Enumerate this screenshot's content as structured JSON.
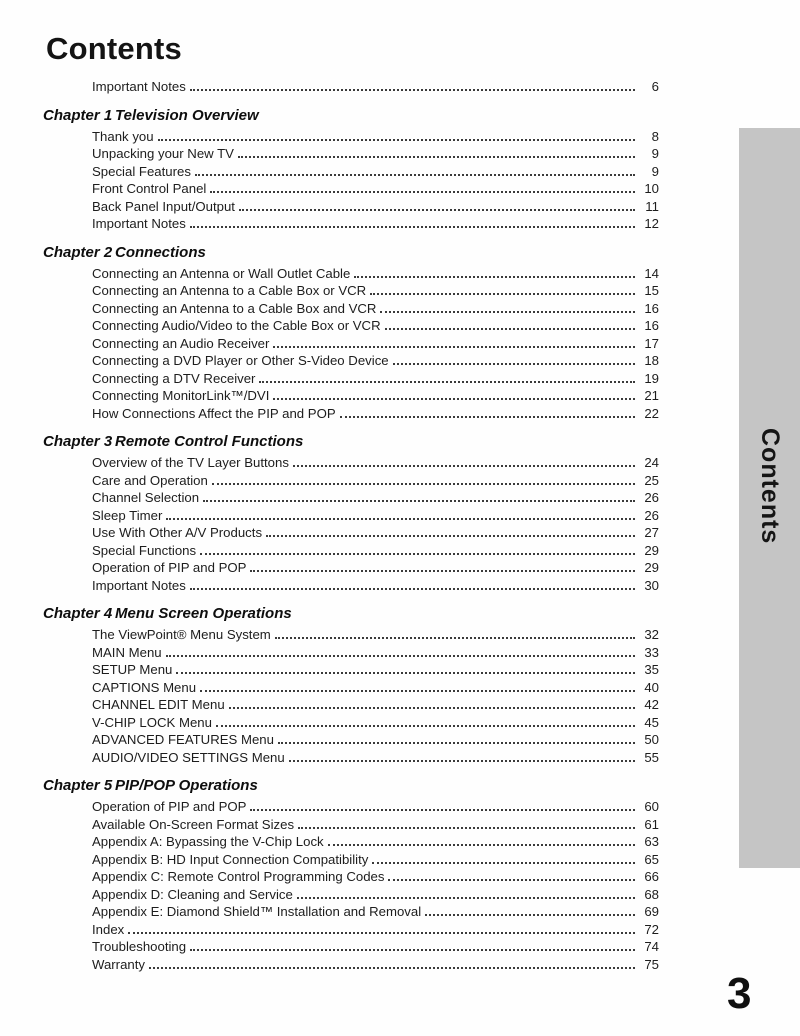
{
  "page": {
    "title": "Contents",
    "sidebar_tab_label": "Contents",
    "folio": "3"
  },
  "toc_sections": [
    {
      "entries": [
        {
          "label": "Important Notes",
          "page": "6"
        }
      ]
    },
    {
      "chapter_number": "Chapter 1",
      "chapter_title": "Television Overview",
      "entries": [
        {
          "label": "Thank you",
          "page": "8"
        },
        {
          "label": "Unpacking your New TV",
          "page": "9"
        },
        {
          "label": "Special Features",
          "page": "9"
        },
        {
          "label": "Front Control Panel",
          "page": "10"
        },
        {
          "label": "Back Panel Input/Output",
          "page": "11"
        },
        {
          "label": "Important Notes",
          "page": "12"
        }
      ]
    },
    {
      "chapter_number": "Chapter 2",
      "chapter_title": "Connections",
      "entries": [
        {
          "label": "Connecting an Antenna or Wall Outlet Cable",
          "page": "14"
        },
        {
          "label": "Connecting an Antenna to a Cable Box or VCR",
          "page": "15"
        },
        {
          "label": "Connecting an Antenna to a Cable Box and VCR",
          "page": "16"
        },
        {
          "label": "Connecting Audio/Video to the Cable Box or VCR",
          "page": "16"
        },
        {
          "label": "Connecting an Audio Receiver",
          "page": "17"
        },
        {
          "label": "Connecting a DVD Player or Other S-Video Device",
          "page": "18"
        },
        {
          "label": "Connecting a DTV Receiver",
          "page": "19"
        },
        {
          "label": "Connecting MonitorLink™/DVI",
          "page": "21"
        },
        {
          "label": "How Connections Affect the PIP and POP",
          "page": "22"
        }
      ]
    },
    {
      "chapter_number": "Chapter 3",
      "chapter_title": "Remote Control Functions",
      "entries": [
        {
          "label": "Overview of the TV Layer Buttons",
          "page": "24"
        },
        {
          "label": "Care and Operation",
          "page": "25"
        },
        {
          "label": "Channel Selection",
          "page": "26"
        },
        {
          "label": "Sleep Timer",
          "page": "26"
        },
        {
          "label": "Use With Other A/V Products",
          "page": "27"
        },
        {
          "label": "Special Functions",
          "page": "29"
        },
        {
          "label": "Operation of PIP and POP",
          "page": "29"
        },
        {
          "label": "Important Notes",
          "page": "30"
        }
      ]
    },
    {
      "chapter_number": "Chapter 4",
      "chapter_title": "Menu Screen Operations",
      "entries": [
        {
          "label": "The ViewPoint® Menu System",
          "page": "32"
        },
        {
          "label": "MAIN Menu",
          "page": "33"
        },
        {
          "label": "SETUP Menu",
          "page": "35"
        },
        {
          "label": "CAPTIONS Menu",
          "page": "40"
        },
        {
          "label": "CHANNEL EDIT Menu",
          "page": "42"
        },
        {
          "label": "V-CHIP LOCK Menu",
          "page": "45"
        },
        {
          "label": "ADVANCED FEATURES Menu",
          "page": "50"
        },
        {
          "label": "AUDIO/VIDEO SETTINGS Menu",
          "page": "55"
        }
      ]
    },
    {
      "chapter_number": "Chapter 5",
      "chapter_title": "PIP/POP Operations",
      "entries": [
        {
          "label": "Operation of PIP and POP",
          "page": "60"
        },
        {
          "label": "Available On-Screen Format Sizes",
          "page": "61"
        },
        {
          "label": "Appendix A: Bypassing the V-Chip Lock",
          "page": "63"
        },
        {
          "label": "Appendix B: HD Input Connection Compatibility",
          "page": "65"
        },
        {
          "label": "Appendix C: Remote Control Programming Codes",
          "page": "66"
        },
        {
          "label": "Appendix D: Cleaning and Service",
          "page": "68"
        },
        {
          "label": "Appendix E: Diamond Shield™ Installation and Removal",
          "page": "69"
        },
        {
          "label": "Index",
          "page": "72"
        },
        {
          "label": "Troubleshooting",
          "page": "74"
        },
        {
          "label": "Warranty",
          "page": "75"
        }
      ]
    }
  ]
}
